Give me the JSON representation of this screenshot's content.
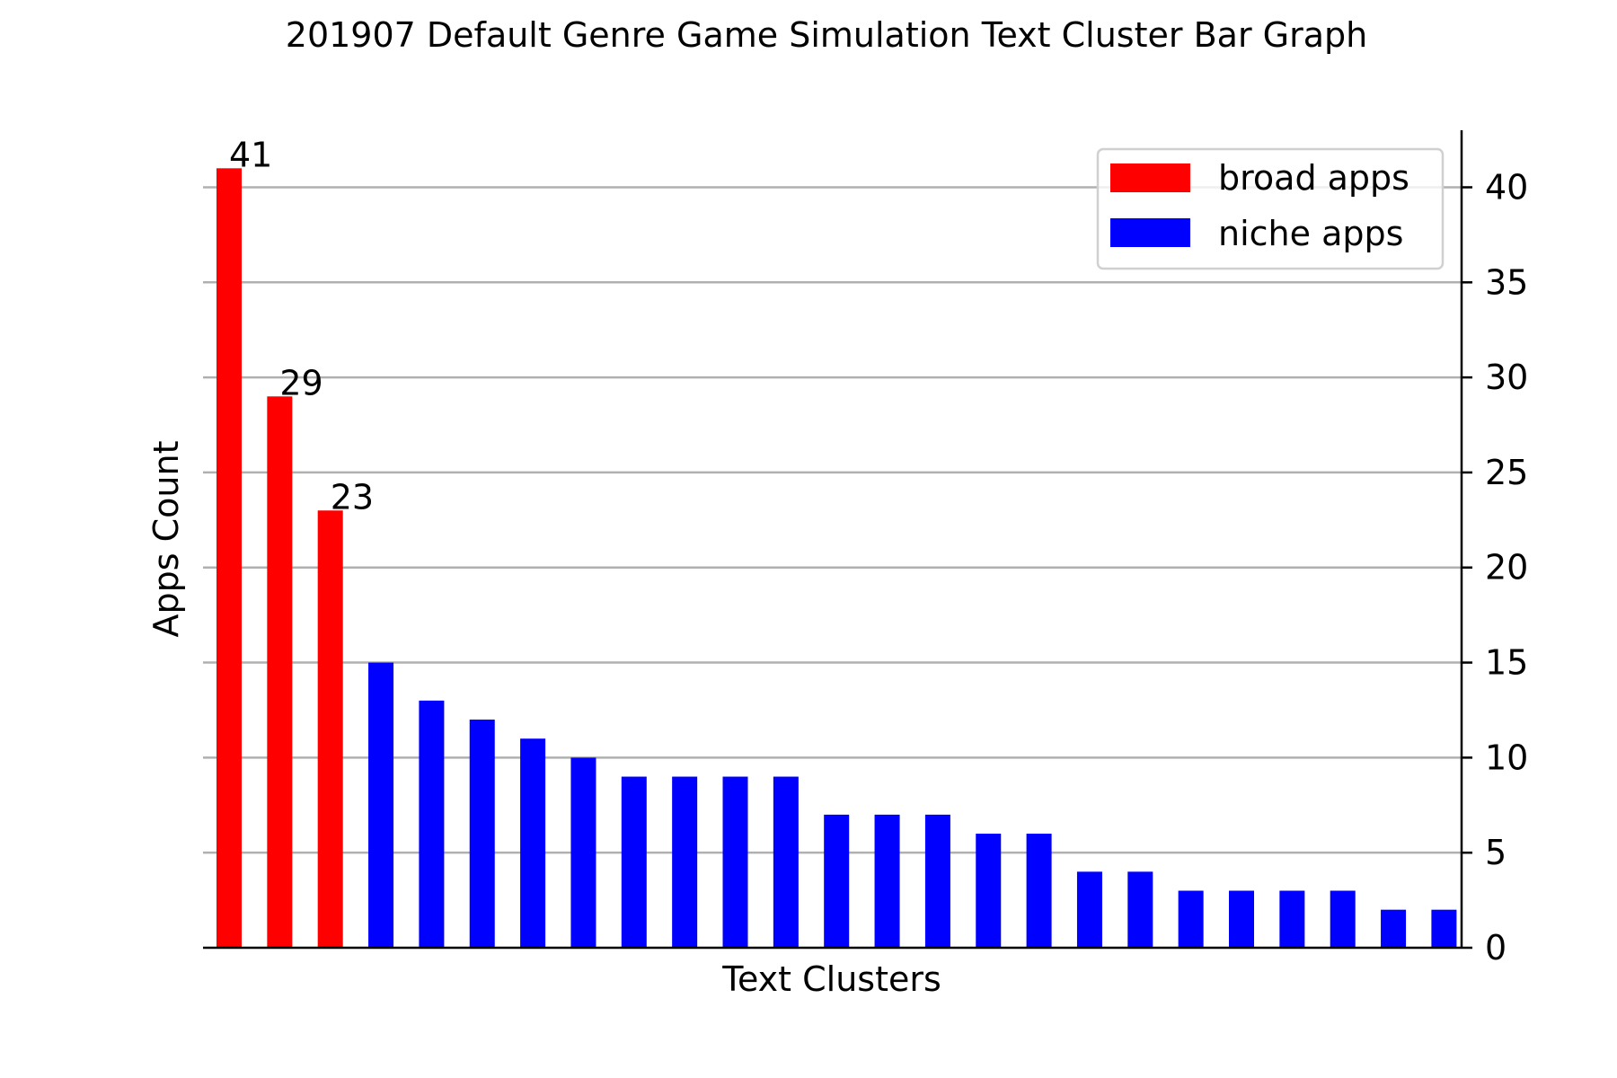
{
  "chart_data": {
    "type": "bar",
    "title": "201907 Default Genre Game Simulation Text Cluster Bar Graph",
    "xlabel": "Text Clusters",
    "ylabel": "Apps Count",
    "ylim": [
      0,
      43
    ],
    "yticks": [
      0,
      5,
      10,
      15,
      20,
      25,
      30,
      35,
      40
    ],
    "y_axis_side": "right",
    "grid": "horizontal",
    "legend_position": "top-right",
    "series": [
      {
        "name": "broad apps",
        "color": "#ff0000",
        "values": [
          41,
          29,
          23
        ],
        "labels": [
          "41",
          "29",
          "23"
        ]
      },
      {
        "name": "niche apps",
        "color": "#0000ff",
        "values": [
          15,
          13,
          12,
          11,
          10,
          9,
          9,
          9,
          9,
          7,
          7,
          7,
          6,
          6,
          4,
          4,
          3,
          3,
          3,
          3,
          2,
          2
        ]
      }
    ]
  }
}
